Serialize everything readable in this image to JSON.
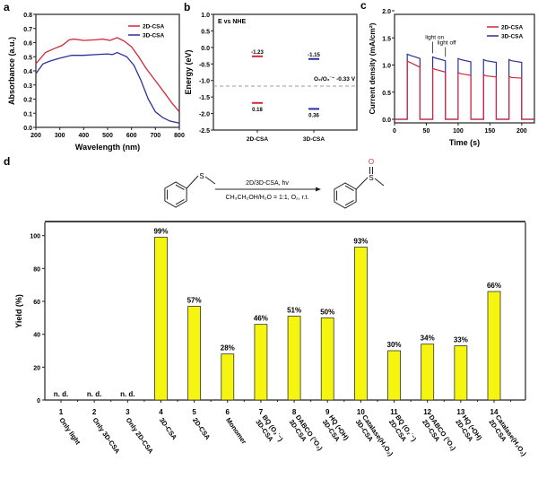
{
  "colors": {
    "red": "#d0283a",
    "blue": "#2b2f9c",
    "bar": "#f5f50f",
    "axis": "#222222",
    "dash": "#999999",
    "oxygen": "#c0392b"
  },
  "panel_labels": [
    "a",
    "b",
    "c",
    "d"
  ],
  "chart_data": [
    {
      "id": "a",
      "type": "line",
      "xlabel": "Wavelength (nm)",
      "ylabel": "Absorbance (a.u.)",
      "xlim": [
        200,
        800
      ],
      "ylim": [
        0,
        0.8
      ],
      "xticks": [
        200,
        300,
        400,
        500,
        600,
        700,
        800
      ],
      "yticks": [
        "0.0",
        "0.1",
        "0.2",
        "0.3",
        "0.4",
        "0.5",
        "0.6",
        "0.7",
        "0.8"
      ],
      "legend": "top-right",
      "series": [
        {
          "name": "2D-CSA",
          "color": "#d0283a",
          "x": [
            200,
            240,
            280,
            310,
            340,
            360,
            400,
            450,
            480,
            510,
            540,
            570,
            600,
            630,
            660,
            700,
            740,
            770,
            800
          ],
          "y": [
            0.45,
            0.53,
            0.56,
            0.58,
            0.62,
            0.625,
            0.615,
            0.62,
            0.625,
            0.615,
            0.635,
            0.61,
            0.57,
            0.5,
            0.42,
            0.33,
            0.24,
            0.17,
            0.11
          ]
        },
        {
          "name": "3D-CSA",
          "color": "#2b2f9c",
          "x": [
            200,
            230,
            260,
            300,
            350,
            400,
            450,
            500,
            520,
            540,
            580,
            610,
            640,
            670,
            700,
            730,
            760,
            800
          ],
          "y": [
            0.38,
            0.45,
            0.47,
            0.49,
            0.51,
            0.51,
            0.515,
            0.52,
            0.515,
            0.53,
            0.5,
            0.44,
            0.33,
            0.2,
            0.11,
            0.07,
            0.045,
            0.03
          ]
        }
      ]
    },
    {
      "id": "b",
      "type": "scatter",
      "title": "E vs NHE",
      "ylabel": "Energy (eV)",
      "ylim": [
        -2.5,
        1.0
      ],
      "y_inverted": true,
      "yticks": [
        "-2.5",
        "-2.0",
        "-1.5",
        "-1.0",
        "-0.5",
        "0.0",
        "0.5",
        "1.0"
      ],
      "categories": [
        "2D-CSA",
        "3D-CSA"
      ],
      "series": [
        {
          "name": "2D-CSA",
          "color": "#d0283a",
          "cb": -1.23,
          "vb": 0.18,
          "cb_label": "-1.23",
          "vb_label": "0.18"
        },
        {
          "name": "3D-CSA",
          "color": "#2b2f9c",
          "cb": -1.15,
          "vb": 0.36,
          "cb_label": "-1.15",
          "vb_label": "0.36"
        }
      ],
      "reference": {
        "value": -0.33,
        "label": "O₂/O₂˙⁻ -0.33 V"
      }
    },
    {
      "id": "c",
      "type": "line",
      "xlabel": "Time (s)",
      "ylabel": "Current density (mA/cm²)",
      "xlim": [
        0,
        220
      ],
      "ylim": [
        0,
        2.0
      ],
      "xticks": [
        0,
        50,
        100,
        150,
        200
      ],
      "yticks": [
        "0.0",
        "0.5",
        "1.0",
        "1.5",
        "2.0"
      ],
      "legend": "top-right",
      "annotations": [
        "light on",
        "light off"
      ],
      "on_times": [
        20,
        60,
        100,
        140,
        180
      ],
      "off_times": [
        40,
        80,
        120,
        160,
        200
      ],
      "series": [
        {
          "name": "2D-CSA",
          "color": "#d0283a",
          "peaks": [
            1.07,
            0.94,
            0.86,
            0.82,
            0.79
          ],
          "ends": [
            0.96,
            0.87,
            0.81,
            0.78,
            0.76
          ]
        },
        {
          "name": "3D-CSA",
          "color": "#2b2f9c",
          "peaks": [
            1.2,
            1.15,
            1.12,
            1.1,
            1.1
          ],
          "ends": [
            1.12,
            1.08,
            1.06,
            1.05,
            1.05
          ]
        }
      ]
    },
    {
      "id": "d",
      "type": "bar",
      "ylabel": "Yield (%)",
      "ylim": [
        0,
        108
      ],
      "yticks": [
        "0",
        "20",
        "40",
        "60",
        "80",
        "100"
      ],
      "categories": [
        "1",
        "2",
        "3",
        "4",
        "5",
        "6",
        "7",
        "8",
        "9",
        "10",
        "11",
        "12",
        "13",
        "14"
      ],
      "category_labels": [
        [
          "Only light"
        ],
        [
          "Only 3D-CSA"
        ],
        [
          "Only 2D-CSA"
        ],
        [
          "3D-CSA"
        ],
        [
          "2D-CSA"
        ],
        [
          "Monomer"
        ],
        [
          "3D-CSA",
          "BQ (O₂˙⁻)"
        ],
        [
          "3D-CSA",
          "DABCO (¹O₂)"
        ],
        [
          "3D-CSA",
          "HQ (•OH)"
        ],
        [
          "3D-CSA",
          "Catalase(H₂O₂)"
        ],
        [
          "2D-CSA",
          "BQ (O₂˙⁻)"
        ],
        [
          "2D-CSA",
          "DABCO (¹O₂)"
        ],
        [
          "2D-CSA",
          "HQ (•OH)"
        ],
        [
          "2D-CSA",
          "Catalase(H₂O₂)"
        ]
      ],
      "values": [
        0,
        0,
        0,
        99,
        57,
        28,
        46,
        51,
        50,
        93,
        30,
        34,
        33,
        66
      ],
      "data_labels": [
        "n. d.",
        "n. d.",
        "n. d.",
        "99%",
        "57%",
        "28%",
        "46%",
        "51%",
        "50%",
        "93%",
        "30%",
        "34%",
        "33%",
        "66%"
      ]
    }
  ],
  "reaction": {
    "reactant_atom": "S",
    "product_atoms": [
      "S",
      "O"
    ],
    "conditions_top": "2D/3D-CSA, hv",
    "conditions_bottom": "CH₃CH₂OH/H₂O = 1:1, O₂, r.t."
  }
}
